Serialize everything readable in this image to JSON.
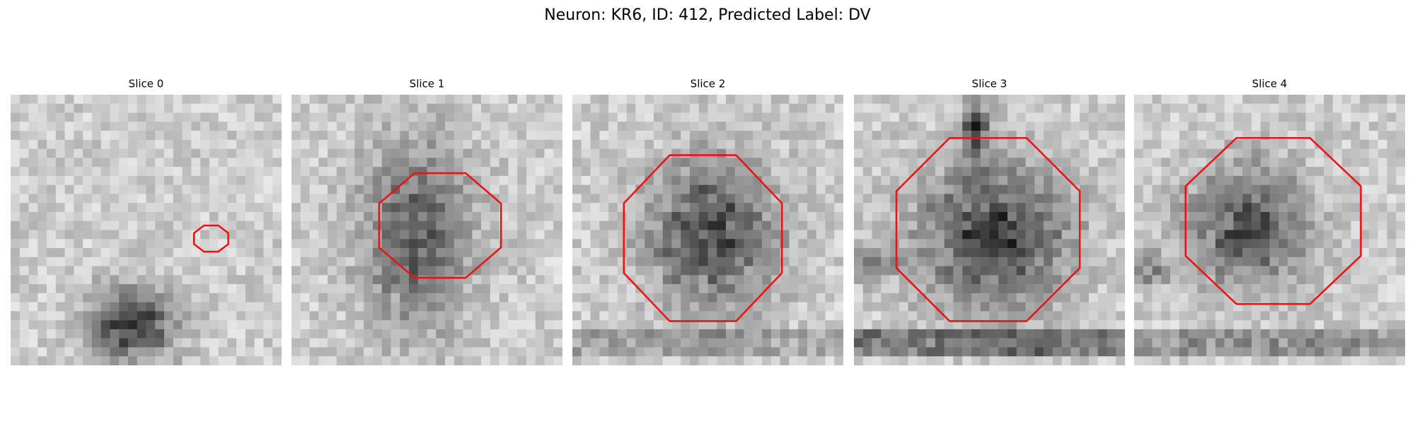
{
  "title": "Neuron: KR6, ID: 412, Predicted Label: DV",
  "panels": [
    {
      "title": "Slice 0"
    },
    {
      "title": "Slice 1"
    },
    {
      "title": "Slice 2"
    },
    {
      "title": "Slice 3"
    },
    {
      "title": "Slice 4"
    }
  ]
}
